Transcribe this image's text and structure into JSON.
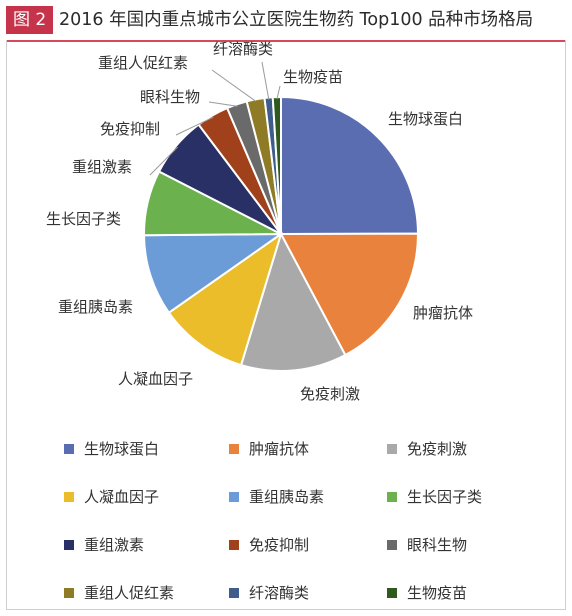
{
  "header": {
    "badge": "图 2",
    "title": "2016 年国内重点城市公立医院生物药 Top100 品种市场格局"
  },
  "chart_data": {
    "type": "pie",
    "title": "2016 年国内重点城市公立医院生物药 Top100 品种市场格局",
    "legend_position": "bottom",
    "slices": [
      {
        "label": "生物球蛋白",
        "value": 26.0,
        "color": "#5b6db1"
      },
      {
        "label": "肿瘤抗体",
        "value": 18.0,
        "color": "#e8823c"
      },
      {
        "label": "免疫刺激",
        "value": 13.0,
        "color": "#a9a9a9"
      },
      {
        "label": "人凝血因子",
        "value": 11.0,
        "color": "#ebbd2b"
      },
      {
        "label": "重组胰岛素",
        "value": 10.0,
        "color": "#6b9cd8"
      },
      {
        "label": "生长因子类",
        "value": 8.0,
        "color": "#6bb14e"
      },
      {
        "label": "重组激素",
        "value": 7.5,
        "color": "#283065"
      },
      {
        "label": "免疫抑制",
        "value": 4.0,
        "color": "#a0411c"
      },
      {
        "label": "眼科生物",
        "value": 2.5,
        "color": "#6a6a6a"
      },
      {
        "label": "重组人促红素",
        "value": 2.2,
        "color": "#8f7a25"
      },
      {
        "label": "纤溶酶类",
        "value": 1.0,
        "color": "#3e5d8a"
      },
      {
        "label": "生物疫苗",
        "value": 1.0,
        "color": "#2f5a1e"
      }
    ]
  }
}
